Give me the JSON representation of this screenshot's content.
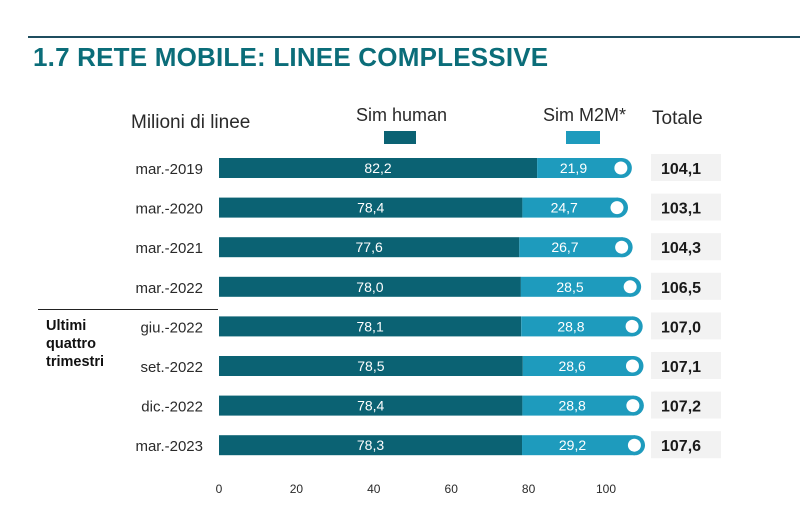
{
  "header": {
    "title": "1.7 RETE MOBILE: LINEE COMPLESSIVE"
  },
  "legend": {
    "units": "Milioni di linee",
    "human_label": "Sim human",
    "m2m_label": "Sim M2M*",
    "total_label": "Totale"
  },
  "group_label": "Ultimi\nquattro\ntrimestri",
  "colors": {
    "human": "#0b6273",
    "m2m": "#1e9bbd",
    "title": "#0b6d79",
    "total_box": "#f2f2f2"
  },
  "chart_data": {
    "type": "bar",
    "stacked": true,
    "orientation": "horizontal",
    "title": "1.7 RETE MOBILE: LINEE COMPLESSIVE",
    "xlabel": "",
    "ylabel": "Milioni di linee",
    "xlim": [
      0,
      100
    ],
    "xticks": [
      0,
      20,
      40,
      60,
      80,
      100
    ],
    "categories": [
      "mar.-2019",
      "mar.-2020",
      "mar.-2021",
      "mar.-2022",
      "giu.-2022",
      "set.-2022",
      "dic.-2022",
      "mar.-2023"
    ],
    "series": [
      {
        "name": "Sim human",
        "values": [
          82.2,
          78.4,
          77.6,
          78.0,
          78.1,
          78.5,
          78.4,
          78.3
        ],
        "labels": [
          "82,2",
          "78,4",
          "77,6",
          "78,0",
          "78,1",
          "78,5",
          "78,4",
          "78,3"
        ]
      },
      {
        "name": "Sim M2M*",
        "values": [
          21.9,
          24.7,
          26.7,
          28.5,
          28.8,
          28.6,
          28.8,
          29.2
        ],
        "labels": [
          "21,9",
          "24,7",
          "26,7",
          "28,5",
          "28,8",
          "28,6",
          "28,8",
          "29,2"
        ]
      }
    ],
    "totals": [
      104.1,
      103.1,
      104.3,
      106.5,
      107.0,
      107.1,
      107.2,
      107.6
    ],
    "total_labels": [
      "104,1",
      "103,1",
      "104,3",
      "106,5",
      "107,0",
      "107,1",
      "107,2",
      "107,6"
    ]
  }
}
